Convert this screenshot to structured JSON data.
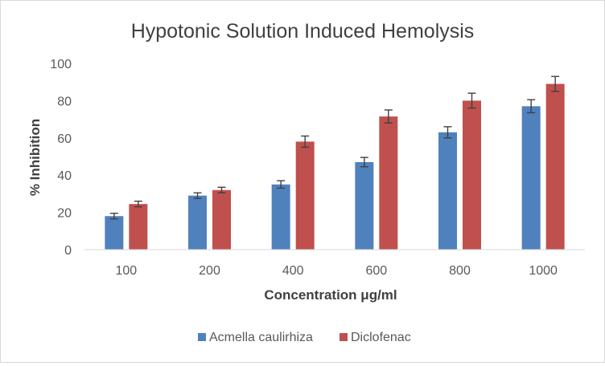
{
  "chart_data": {
    "type": "bar",
    "title": "Hypotonic Solution Induced Hemolysis",
    "xlabel": "Concentration μg/ml",
    "ylabel": "% Inhibition",
    "categories": [
      "100",
      "200",
      "400",
      "600",
      "800",
      "1000"
    ],
    "series": [
      {
        "name": "Acmella caulirhiza",
        "color": "#4f81bd",
        "values": [
          18,
          29,
          35,
          47,
          63,
          77
        ],
        "errors": [
          1.5,
          1.5,
          2,
          2.5,
          3,
          3.5
        ]
      },
      {
        "name": "Diclofenac",
        "color": "#c0504d",
        "values": [
          24.5,
          32,
          58,
          71.5,
          80,
          89
        ],
        "errors": [
          1.5,
          1.5,
          3,
          3.5,
          4,
          4
        ]
      }
    ],
    "ylim": [
      0,
      100
    ],
    "yticks": [
      0,
      20,
      40,
      60,
      80,
      100
    ],
    "grid": false,
    "legend_position": "bottom"
  }
}
